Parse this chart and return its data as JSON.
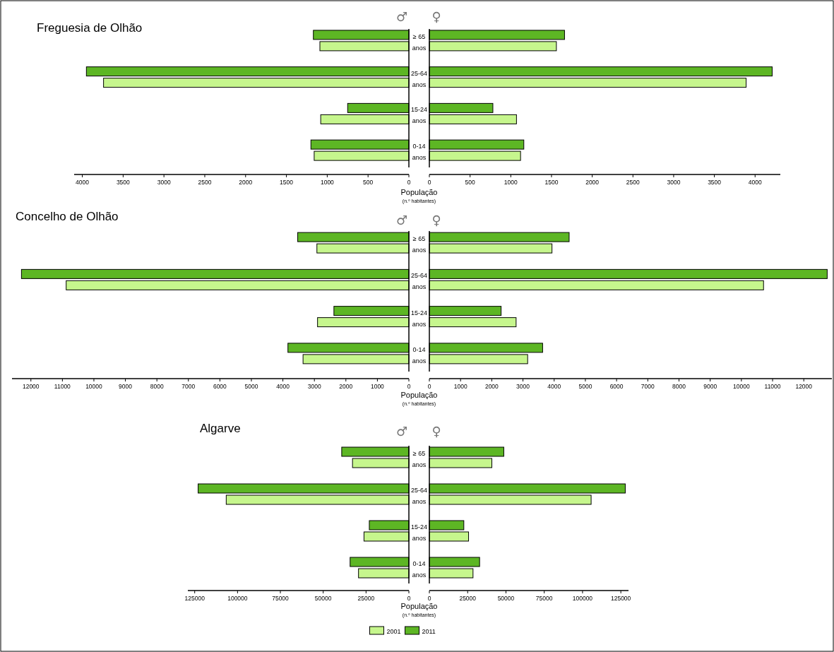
{
  "chart_data": [
    {
      "type": "bar",
      "orientation": "horizontal",
      "title": "Freguesia de Olhão",
      "xlabel": "População",
      "annotations": [
        "♂",
        "(n.º habitantes)"
      ],
      "categories": [
        null,
        null,
        null,
        null
      ],
      "xlim": [
        4100,
        0
      ],
      "xticks": [
        4000,
        3500,
        3000,
        2500,
        2000,
        1500,
        1000,
        500,
        0
      ],
      "legend": false,
      "series": [
        {
          "color": "#c6f68d",
          "values": [
            1090,
            3740,
            1080,
            1160
          ]
        },
        {
          "color": "#5db624",
          "values": [
            1170,
            3950,
            750,
            1200
          ]
        }
      ]
    },
    {
      "type": "bar",
      "orientation": "horizontal",
      "annotations": [
        "♀"
      ],
      "categories": [
        "≥ 65 anos",
        "25-64 anos",
        "15-24 anos",
        "0-14 anos"
      ],
      "xlim": [
        0,
        4310
      ],
      "xticks": [
        0,
        500,
        1000,
        1500,
        2000,
        2500,
        3000,
        3500,
        4000
      ],
      "legend": false,
      "series": [
        {
          "color": "#c6f68d",
          "values": [
            1560,
            3890,
            1070,
            1120
          ]
        },
        {
          "color": "#5db624",
          "values": [
            1660,
            4210,
            780,
            1160
          ]
        }
      ]
    },
    {
      "type": "bar",
      "orientation": "horizontal",
      "title": "Concelho de Olhão",
      "xlabel": "População",
      "annotations": [
        "♂",
        "(n.º habitantes)"
      ],
      "categories": [
        null,
        null,
        null,
        null
      ],
      "xlim": [
        12600,
        0
      ],
      "xticks": [
        12000,
        11000,
        10000,
        9000,
        8000,
        7000,
        6000,
        5000,
        4000,
        3000,
        2000,
        1000,
        0
      ],
      "legend": false,
      "series": [
        {
          "color": "#c6f68d",
          "values": [
            2920,
            10880,
            2900,
            3360
          ]
        },
        {
          "color": "#5db624",
          "values": [
            3530,
            12300,
            2380,
            3840
          ]
        }
      ]
    },
    {
      "type": "bar",
      "orientation": "horizontal",
      "annotations": [
        "♀"
      ],
      "categories": [
        "≥ 65 anos",
        "25-64 anos",
        "15-24 anos",
        "0-14 anos"
      ],
      "xlim": [
        0,
        12900
      ],
      "xticks": [
        0,
        1000,
        2000,
        3000,
        4000,
        5000,
        6000,
        7000,
        8000,
        9000,
        10000,
        11000,
        12000
      ],
      "legend": false,
      "series": [
        {
          "color": "#c6f68d",
          "values": [
            3930,
            10710,
            2780,
            3150
          ]
        },
        {
          "color": "#5db624",
          "values": [
            4480,
            12750,
            2300,
            3630
          ]
        }
      ]
    },
    {
      "type": "bar",
      "orientation": "horizontal",
      "title": "Algarve",
      "xlabel": "População",
      "annotations": [
        "♂",
        "(n.º habitantes)"
      ],
      "categories": [
        null,
        null,
        null,
        null
      ],
      "xlim": [
        129000,
        0
      ],
      "xticks": [
        125000,
        100000,
        75000,
        50000,
        25000,
        0
      ],
      "legend": "bottom",
      "series": [
        {
          "name": "2001",
          "color": "#c6f68d",
          "values": [
            32900,
            106600,
            26200,
            29400
          ]
        },
        {
          "name": "2011",
          "color": "#5db624",
          "values": [
            39200,
            123000,
            23100,
            34300
          ]
        }
      ]
    },
    {
      "type": "bar",
      "orientation": "horizontal",
      "annotations": [
        "♀"
      ],
      "categories": [
        "≥ 65 anos",
        "25-64 anos",
        "15-24 anos",
        "0-14 anos"
      ],
      "xlim": [
        0,
        130000
      ],
      "xticks": [
        0,
        25000,
        50000,
        75000,
        100000,
        125000
      ],
      "legend": false,
      "series": [
        {
          "color": "#c6f68d",
          "values": [
            40800,
            105600,
            25600,
            28500
          ]
        },
        {
          "color": "#5db624",
          "values": [
            48600,
            127900,
            22500,
            32800
          ]
        }
      ]
    }
  ]
}
